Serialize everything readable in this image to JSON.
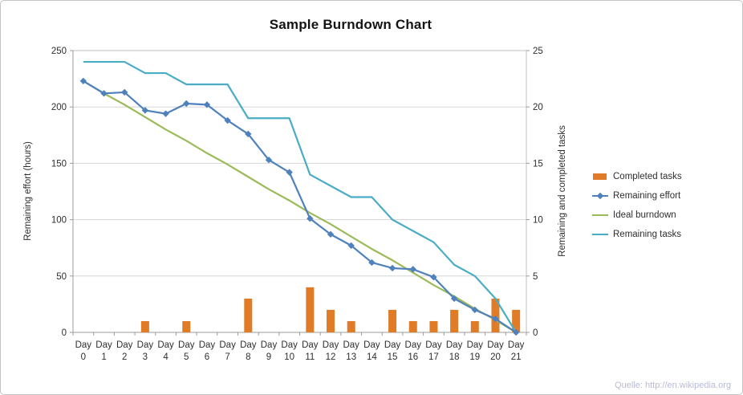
{
  "source_note": "Quelle: http://en.wikipedia.org",
  "chart_data": {
    "type": "combo",
    "title": "Sample Burndown Chart",
    "legend_position": "right",
    "grid": "horizontal",
    "categories": [
      "Day 0",
      "Day 1",
      "Day 2",
      "Day 3",
      "Day 4",
      "Day 5",
      "Day 6",
      "Day 7",
      "Day 8",
      "Day 9",
      "Day 10",
      "Day 11",
      "Day 12",
      "Day 13",
      "Day 14",
      "Day 15",
      "Day 16",
      "Day 17",
      "Day 18",
      "Day 19",
      "Day 20",
      "Day 21"
    ],
    "left_axis": {
      "label": "Remaining effort (hours)",
      "min": 0,
      "max": 250,
      "ticks": [
        0,
        50,
        100,
        150,
        200,
        250
      ]
    },
    "right_axis": {
      "label": "Remaining and completed tasks",
      "min": 0,
      "max": 25,
      "ticks": [
        0,
        5,
        10,
        15,
        20,
        25
      ]
    },
    "series": [
      {
        "name": "Completed tasks",
        "type": "bar",
        "axis": "right",
        "color": "#E07C28",
        "values": [
          null,
          null,
          null,
          1,
          null,
          1,
          null,
          null,
          3,
          null,
          null,
          4,
          2,
          1,
          null,
          2,
          1,
          1,
          2,
          1,
          3,
          2
        ]
      },
      {
        "name": "Remaining effort",
        "type": "line",
        "marker": "diamond",
        "axis": "left",
        "color": "#4F81BD",
        "values": [
          223,
          212,
          213,
          197,
          194,
          203,
          202,
          188,
          176,
          153,
          142,
          101,
          87,
          77,
          62,
          57,
          56,
          49,
          30,
          20,
          12,
          0
        ]
      },
      {
        "name": "Ideal burndown",
        "type": "line",
        "axis": "left",
        "color": "#9BBB59",
        "values": [
          223,
          212,
          202,
          191,
          180,
          170,
          159,
          149,
          138,
          127,
          117,
          106,
          96,
          85,
          74,
          64,
          53,
          42,
          32,
          21,
          11,
          0
        ]
      },
      {
        "name": "Remaining tasks",
        "type": "line",
        "axis": "right",
        "color": "#4BACC6",
        "values": [
          24,
          24,
          24,
          23,
          23,
          22,
          22,
          22,
          19,
          19,
          19,
          14,
          13,
          12,
          12,
          10,
          9,
          8,
          6,
          5,
          3,
          0
        ]
      }
    ]
  }
}
